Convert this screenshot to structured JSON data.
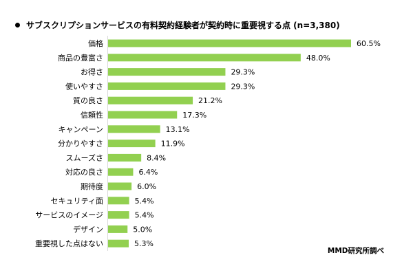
{
  "chart_data": {
    "type": "bar",
    "orientation": "horizontal",
    "title": "サブスクリプションサービスの有料契約経験者が契約時に重要視する点 (n=3,380)",
    "categories": [
      "価格",
      "商品の豊富さ",
      "お得さ",
      "使いやすさ",
      "質の良さ",
      "信頼性",
      "キャンペーン",
      "分かりやすさ",
      "スムーズさ",
      "対応の良さ",
      "期待度",
      "セキュリティ面",
      "サービスのイメージ",
      "デザイン",
      "重要視した点はない"
    ],
    "values": [
      60.5,
      48.0,
      29.3,
      29.3,
      21.2,
      17.3,
      13.1,
      11.9,
      8.4,
      6.4,
      6.0,
      5.4,
      5.4,
      5.0,
      5.3
    ],
    "value_labels": [
      "60.5%",
      "48.0%",
      "29.3%",
      "29.3%",
      "21.2%",
      "17.3%",
      "13.1%",
      "11.9%",
      "8.4%",
      "6.4%",
      "6.0%",
      "5.4%",
      "5.4%",
      "5.0%",
      "5.3%"
    ],
    "unit": "%",
    "xlim": [
      0,
      70
    ],
    "bar_color": "#92d050",
    "grid": false,
    "legend": "none"
  },
  "source": "MMD研究所調べ"
}
